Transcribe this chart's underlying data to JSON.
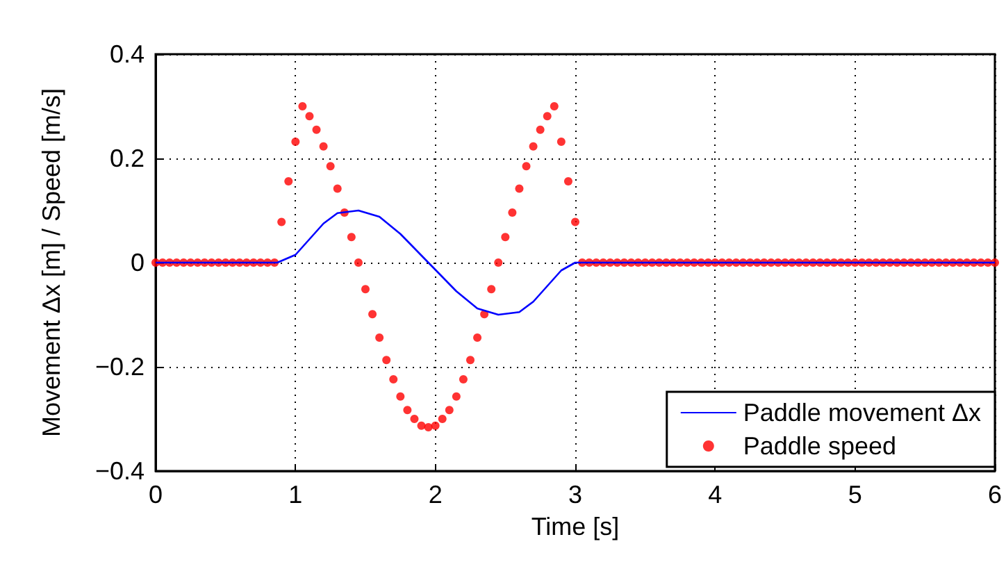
{
  "chart_data": {
    "type": "line",
    "xlabel": "Time [s]",
    "ylabel": "Movement Δx [m] / Speed [m/s]",
    "xlim": [
      0,
      6
    ],
    "xticks": [
      0,
      1,
      2,
      3,
      4,
      5,
      6
    ],
    "ylim": [
      -0.4,
      0.4
    ],
    "yticks": [
      {
        "value": -0.4,
        "label": "−0.4"
      },
      {
        "value": -0.2,
        "label": "−0.2"
      },
      0,
      0.2,
      0.4
    ],
    "grid": true,
    "legend": "bottom right",
    "series": [
      {
        "name": "Paddle movement Δx",
        "color": "#0000ff",
        "marker": "none",
        "line_style": "solid",
        "x": [
          0,
          0.87,
          1.0,
          1.1,
          1.2,
          1.3,
          1.45,
          1.6,
          1.75,
          1.95,
          2.15,
          2.3,
          2.45,
          2.6,
          2.7,
          2.8,
          2.9,
          3.0,
          6
        ],
        "values": [
          0,
          0,
          0.015,
          0.045,
          0.075,
          0.095,
          0.1,
          0.088,
          0.055,
          0,
          -0.055,
          -0.088,
          -0.1,
          -0.095,
          -0.075,
          -0.045,
          -0.015,
          0,
          0
        ]
      },
      {
        "name": "Paddle speed",
        "type": "scatter",
        "color": "#ff0000",
        "marker": "circle",
        "x": [
          0,
          0.05,
          0.1,
          0.15,
          0.2,
          0.25,
          0.3,
          0.35,
          0.4,
          0.45,
          0.5,
          0.55,
          0.6,
          0.65,
          0.7,
          0.75,
          0.8,
          0.85,
          0.9,
          0.95,
          1.0,
          1.05,
          1.1,
          1.15,
          1.2,
          1.25,
          1.3,
          1.35,
          1.4,
          1.45,
          1.5,
          1.55,
          1.6,
          1.65,
          1.7,
          1.75,
          1.8,
          1.85,
          1.9,
          1.95,
          2.0,
          2.05,
          2.1,
          2.15,
          2.2,
          2.25,
          2.3,
          2.35,
          2.4,
          2.45,
          2.5,
          2.55,
          2.6,
          2.65,
          2.7,
          2.75,
          2.8,
          2.85,
          2.9,
          2.95,
          3.0,
          3.05,
          3.1,
          3.15,
          3.2,
          3.25,
          3.3,
          3.35,
          3.4,
          3.45,
          3.5,
          3.55,
          3.6,
          3.65,
          3.7,
          3.75,
          3.8,
          3.85,
          3.9,
          3.95,
          4.0,
          4.05,
          4.1,
          4.15,
          4.2,
          4.25,
          4.3,
          4.35,
          4.4,
          4.45,
          4.5,
          4.55,
          4.6,
          4.65,
          4.7,
          4.75,
          4.8,
          4.85,
          4.9,
          4.95,
          5.0,
          5.05,
          5.1,
          5.15,
          5.2,
          5.25,
          5.3,
          5.35,
          5.4,
          5.45,
          5.5,
          5.55,
          5.6,
          5.65,
          5.7,
          5.75,
          5.8,
          5.85,
          5.9,
          5.95,
          6.0
        ],
        "values": [
          0,
          0,
          0,
          0,
          0,
          0,
          0,
          0,
          0,
          0,
          0,
          0,
          0,
          0,
          0,
          0,
          0,
          0,
          0.078,
          0.156,
          0.232,
          0.3,
          0.281,
          0.255,
          0.223,
          0.185,
          0.142,
          0.096,
          0.049,
          0,
          -0.051,
          -0.099,
          -0.144,
          -0.187,
          -0.224,
          -0.257,
          -0.283,
          -0.3,
          -0.313,
          -0.316,
          -0.313,
          -0.3,
          -0.283,
          -0.257,
          -0.224,
          -0.187,
          -0.144,
          -0.099,
          -0.051,
          0,
          0.049,
          0.096,
          0.142,
          0.185,
          0.223,
          0.255,
          0.281,
          0.3,
          0.232,
          0.156,
          0.078,
          0,
          0,
          0,
          0,
          0,
          0,
          0,
          0,
          0,
          0,
          0,
          0,
          0,
          0,
          0,
          0,
          0,
          0,
          0,
          0,
          0,
          0,
          0,
          0,
          0,
          0,
          0,
          0,
          0,
          0,
          0,
          0,
          0,
          0,
          0,
          0,
          0,
          0,
          0,
          0,
          0,
          0,
          0,
          0,
          0,
          0,
          0,
          0,
          0,
          0,
          0,
          0,
          0,
          0,
          0,
          0,
          0,
          0,
          0,
          0
        ]
      }
    ]
  }
}
